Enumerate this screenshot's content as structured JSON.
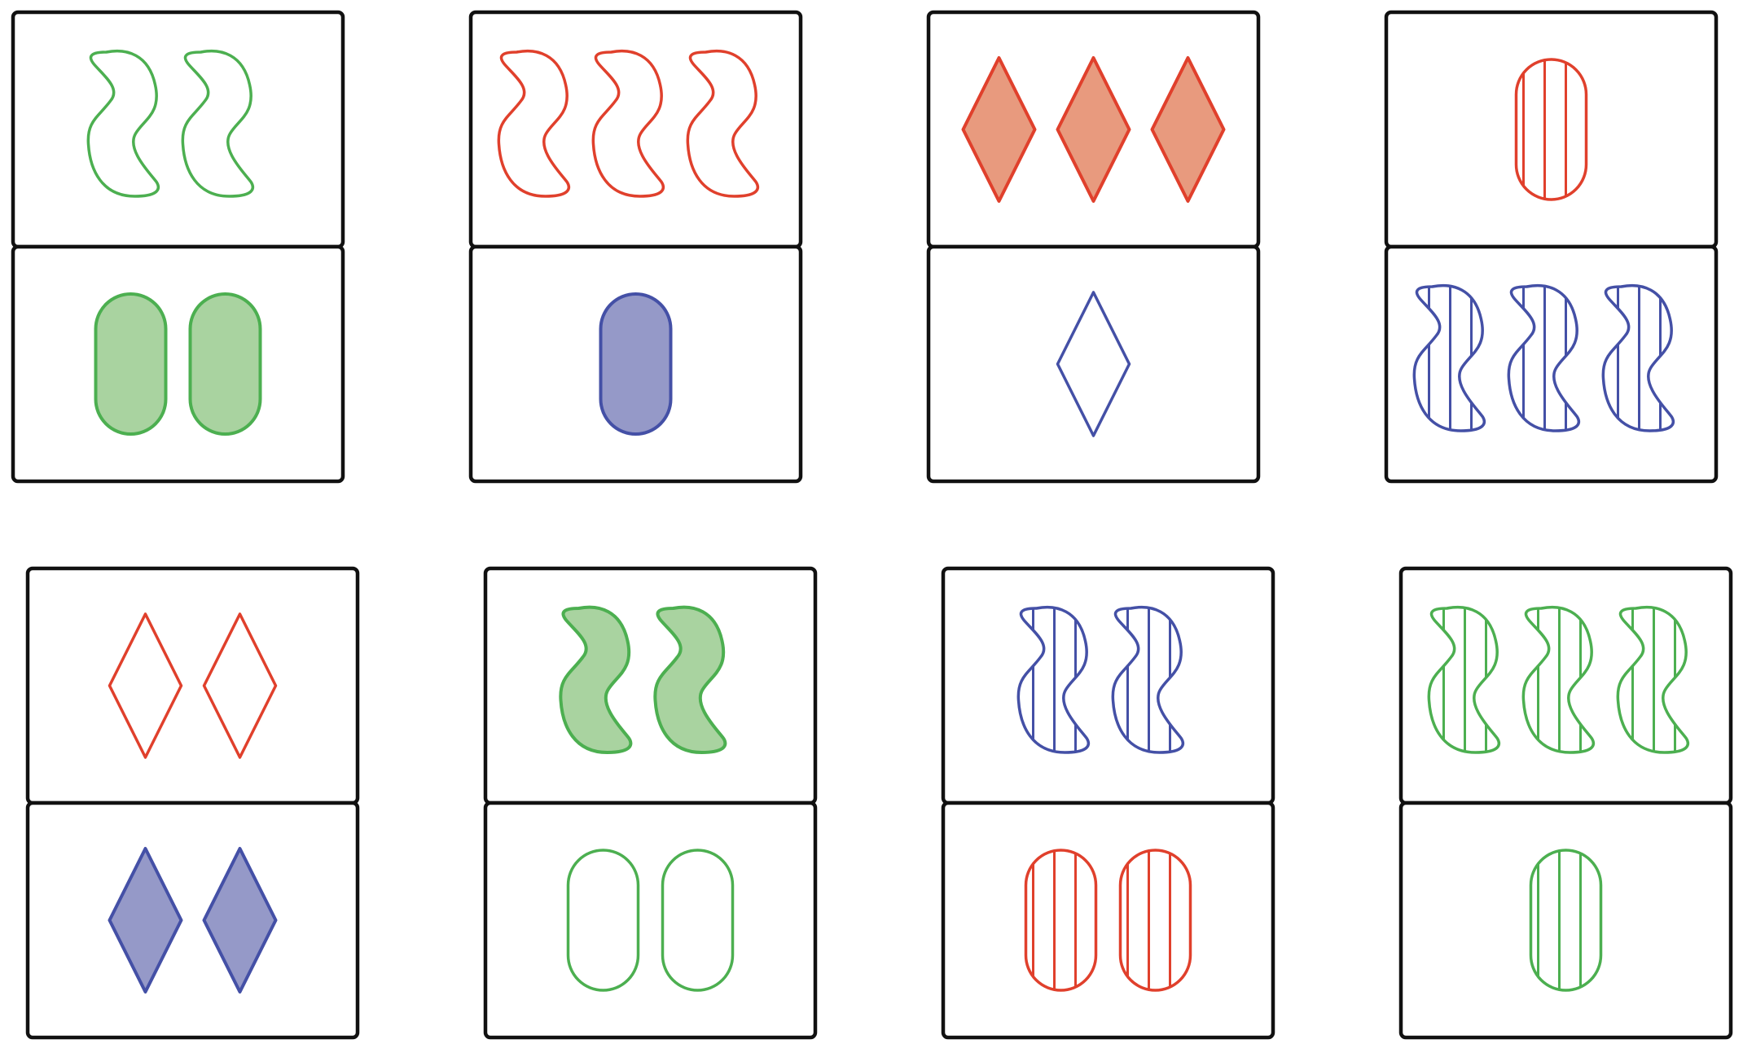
{
  "board": {
    "colors": {
      "green": {
        "stroke": "#4caf50",
        "fill": "#a9d3a0"
      },
      "red": {
        "stroke": "#e0402c",
        "fill": "#e89a7e"
      },
      "blue": {
        "stroke": "#4450a6",
        "fill": "#9599c8"
      }
    },
    "dominoes": [
      {
        "top": {
          "count": 2,
          "shape": "squiggle",
          "color": "green",
          "shading": "open"
        },
        "bottom": {
          "count": 2,
          "shape": "oval",
          "color": "green",
          "shading": "solid"
        }
      },
      {
        "top": {
          "count": 3,
          "shape": "squiggle",
          "color": "red",
          "shading": "open"
        },
        "bottom": {
          "count": 1,
          "shape": "oval",
          "color": "blue",
          "shading": "solid"
        }
      },
      {
        "top": {
          "count": 3,
          "shape": "diamond",
          "color": "red",
          "shading": "solid"
        },
        "bottom": {
          "count": 1,
          "shape": "diamond",
          "color": "blue",
          "shading": "open"
        }
      },
      {
        "top": {
          "count": 1,
          "shape": "oval",
          "color": "red",
          "shading": "striped"
        },
        "bottom": {
          "count": 3,
          "shape": "squiggle",
          "color": "blue",
          "shading": "striped"
        }
      },
      {
        "top": {
          "count": 2,
          "shape": "diamond",
          "color": "red",
          "shading": "open"
        },
        "bottom": {
          "count": 2,
          "shape": "diamond",
          "color": "blue",
          "shading": "solid"
        }
      },
      {
        "top": {
          "count": 2,
          "shape": "squiggle",
          "color": "green",
          "shading": "solid"
        },
        "bottom": {
          "count": 2,
          "shape": "oval",
          "color": "green",
          "shading": "open"
        }
      },
      {
        "top": {
          "count": 2,
          "shape": "squiggle",
          "color": "blue",
          "shading": "striped"
        },
        "bottom": {
          "count": 2,
          "shape": "oval",
          "color": "red",
          "shading": "striped"
        }
      },
      {
        "top": {
          "count": 3,
          "shape": "squiggle",
          "color": "green",
          "shading": "striped"
        },
        "bottom": {
          "count": 1,
          "shape": "oval",
          "color": "green",
          "shading": "striped"
        }
      }
    ]
  }
}
